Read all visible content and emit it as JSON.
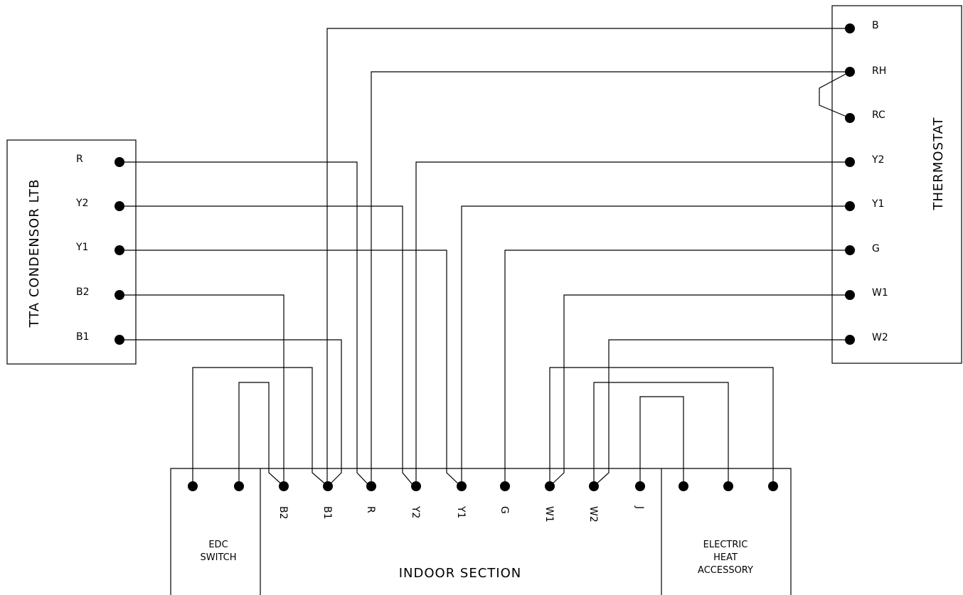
{
  "condenser": {
    "title": "TTA CONDENSOR LTB",
    "terminals": [
      "R",
      "Y2",
      "Y1",
      "B2",
      "B1"
    ]
  },
  "thermostat": {
    "title": "THERMOSTAT",
    "terminals": [
      "B",
      "RH",
      "RC",
      "Y2",
      "Y1",
      "G",
      "W1",
      "W2"
    ]
  },
  "indoor": {
    "title": "INDOOR SECTION",
    "terminals": [
      "B2",
      "B1",
      "R",
      "Y2",
      "Y1",
      "G",
      "W1",
      "W2",
      "J"
    ]
  },
  "edc": {
    "line1": "EDC",
    "line2": "SWITCH"
  },
  "heat": {
    "line1": "ELECTRIC",
    "line2": "HEAT",
    "line3": "ACCESSORY"
  }
}
